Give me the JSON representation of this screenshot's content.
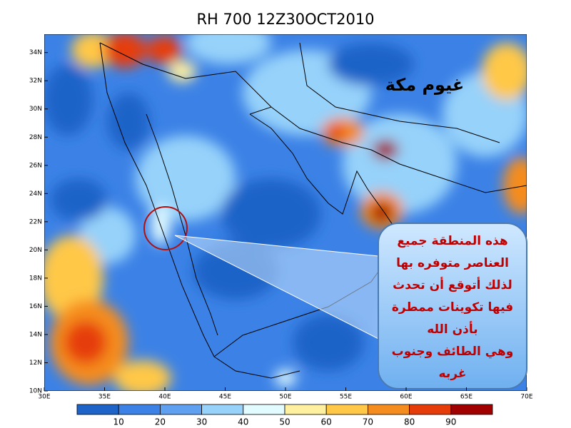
{
  "title": "RH 700 12Z30OCT2010",
  "map": {
    "lonlim": [
      30,
      70
    ],
    "latlim": [
      10,
      35.3
    ],
    "lon_ticks": [
      {
        "value": 30,
        "label": "30E"
      },
      {
        "value": 35,
        "label": "35E"
      },
      {
        "value": 40,
        "label": "40E"
      },
      {
        "value": 45,
        "label": "45E"
      },
      {
        "value": 50,
        "label": "50E"
      },
      {
        "value": 55,
        "label": "55E"
      },
      {
        "value": 60,
        "label": "60E"
      },
      {
        "value": 65,
        "label": "65E"
      },
      {
        "value": 70,
        "label": "70E"
      }
    ],
    "lat_ticks": [
      {
        "value": 10,
        "label": "10N"
      },
      {
        "value": 12,
        "label": "12N"
      },
      {
        "value": 14,
        "label": "14N"
      },
      {
        "value": 16,
        "label": "16N"
      },
      {
        "value": 18,
        "label": "18N"
      },
      {
        "value": 20,
        "label": "20N"
      },
      {
        "value": 22,
        "label": "22N"
      },
      {
        "value": 24,
        "label": "24N"
      },
      {
        "value": 26,
        "label": "26N"
      },
      {
        "value": 28,
        "label": "28N"
      },
      {
        "value": 30,
        "label": "30N"
      },
      {
        "value": 32,
        "label": "32N"
      },
      {
        "value": 34,
        "label": "34N"
      }
    ]
  },
  "colorbar": {
    "range": [
      0,
      100
    ],
    "ticks": [
      10,
      20,
      30,
      40,
      50,
      60,
      70,
      80,
      90
    ],
    "colors": [
      "#1e64c8",
      "#3c82e6",
      "#5fa0f0",
      "#96d2fa",
      "#e1fbff",
      "#fff0a0",
      "#ffc846",
      "#f58c1e",
      "#e63c0a",
      "#a00000"
    ]
  },
  "annotations": {
    "label": "غيوم مكة",
    "callout": [
      "هذه المنطقة جميع",
      "العناصر متوفره بها",
      "لذلك أتوقع أن تحدث",
      "فيها تكوينات ممطرة",
      "بأذن الله",
      "وهي الطائف وجنوب",
      "غربه"
    ]
  }
}
